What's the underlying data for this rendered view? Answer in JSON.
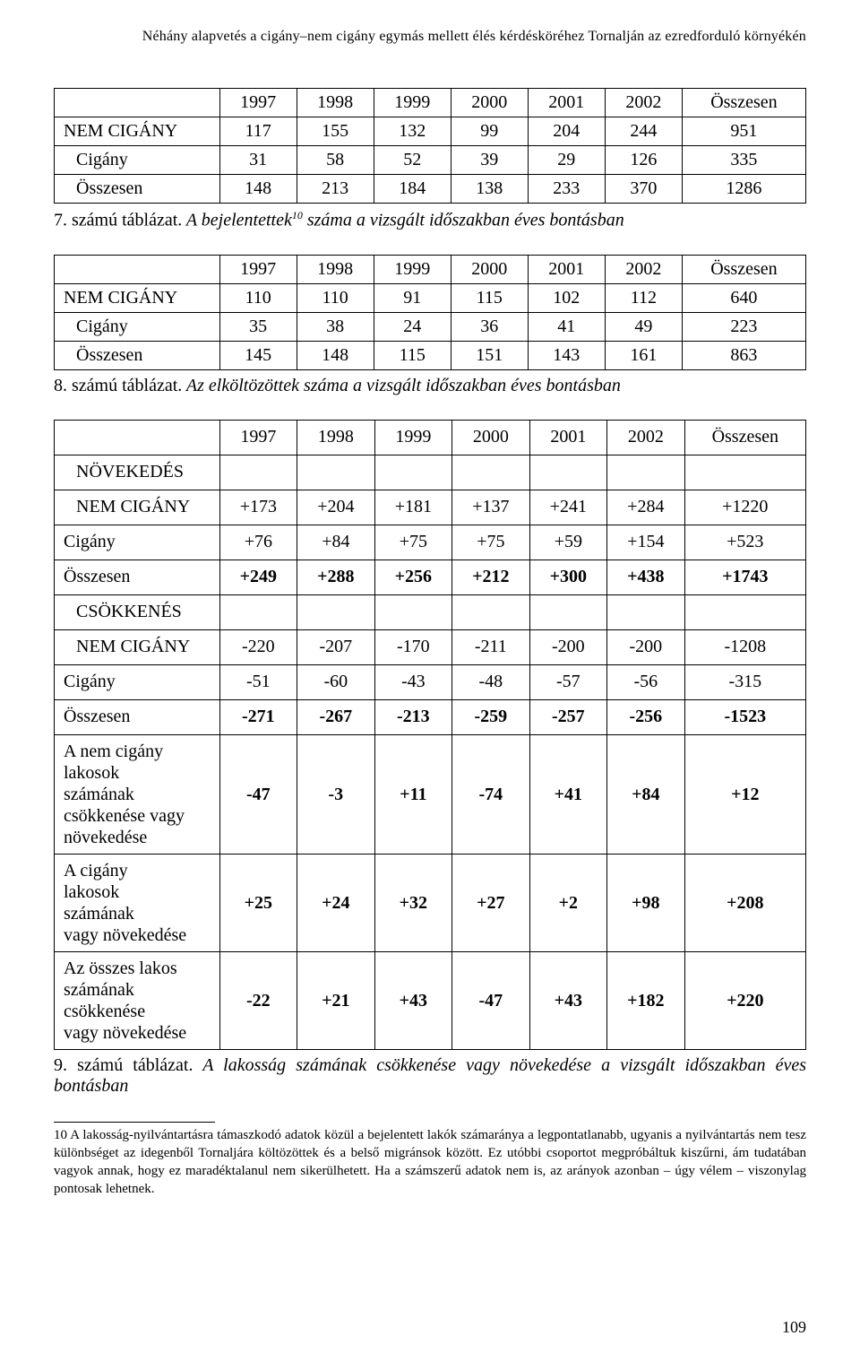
{
  "running_head": "Néhány alapvetés a cigány–nem cigány egymás mellett élés kérdésköréhez Tornalján az ezredforduló környékén",
  "years": [
    "1997",
    "1998",
    "1999",
    "2000",
    "2001",
    "2002",
    "Összesen"
  ],
  "table7": {
    "rows": [
      {
        "label": "NEM CIGÁNY",
        "vals": [
          "117",
          "155",
          "132",
          "99",
          "204",
          "244",
          "951"
        ],
        "indent": false
      },
      {
        "label": "Cigány",
        "vals": [
          "31",
          "58",
          "52",
          "39",
          "29",
          "126",
          "335"
        ],
        "indent": true
      },
      {
        "label": "Összesen",
        "vals": [
          "148",
          "213",
          "184",
          "138",
          "233",
          "370",
          "1286"
        ],
        "indent": true
      }
    ]
  },
  "caption7_a": "7. számú táblázat.",
  "caption7_b": " A bejelentettek",
  "caption7_sup": "10",
  "caption7_c": " száma a vizsgált időszakban éves bontásban",
  "table8": {
    "rows": [
      {
        "label": "NEM CIGÁNY",
        "vals": [
          "110",
          "110",
          "91",
          "115",
          "102",
          "112",
          "640"
        ],
        "indent": false
      },
      {
        "label": "Cigány",
        "vals": [
          "35",
          "38",
          "24",
          "36",
          "41",
          "49",
          "223"
        ],
        "indent": true
      },
      {
        "label": "Összesen",
        "vals": [
          "145",
          "148",
          "115",
          "151",
          "143",
          "161",
          "863"
        ],
        "indent": true
      }
    ]
  },
  "caption8_a": "8. számú táblázat.",
  "caption8_b": " Az elköltözöttek száma a vizsgált időszakban éves bontásban",
  "table9": {
    "section1": "NÖVEKEDÉS",
    "s1rows": [
      {
        "label": "NEM CIGÁNY",
        "vals": [
          "+173",
          "+204",
          "+181",
          "+137",
          "+241",
          "+284",
          "+1220"
        ],
        "indent": false,
        "bold": false
      },
      {
        "label": "Cigány",
        "vals": [
          "+76",
          "+84",
          "+75",
          "+75",
          "+59",
          "+154",
          "+523"
        ],
        "indent": false,
        "bold": false
      },
      {
        "label": "Összesen",
        "vals": [
          "+249",
          "+288",
          "+256",
          "+212",
          "+300",
          "+438",
          "+1743"
        ],
        "indent": false,
        "bold": true
      }
    ],
    "section2": "CSÖKKENÉS",
    "s2rows": [
      {
        "label": "NEM CIGÁNY",
        "vals": [
          "-220",
          "-207",
          "-170",
          "-211",
          "-200",
          "-200",
          "-1208"
        ],
        "indent": false,
        "bold": false
      },
      {
        "label": "Cigány",
        "vals": [
          "-51",
          "-60",
          "-43",
          "-48",
          "-57",
          "-56",
          "-315"
        ],
        "indent": false,
        "bold": false
      },
      {
        "label": "Összesen",
        "vals": [
          "-271",
          "-267",
          "-213",
          "-259",
          "-257",
          "-256",
          "-1523"
        ],
        "indent": false,
        "bold": true
      }
    ],
    "tailrows": [
      {
        "label": "A nem cigány\nlakosok\nszámának\ncsökkenése vagy\nnövekedése",
        "vals": [
          "-47",
          "-3",
          "+11",
          "-74",
          "+41",
          "+84",
          "+12"
        ],
        "bold": true
      },
      {
        "label": "A cigány\nlakosok\nszámának\nvagy növekedése",
        "vals": [
          "+25",
          "+24",
          "+32",
          "+27",
          "+2",
          "+98",
          "+208"
        ],
        "bold": true
      },
      {
        "label": "Az összes lakos\nszámának\ncsökkenése\nvagy növekedése",
        "vals": [
          "-22",
          "+21",
          "+43",
          "-47",
          "+43",
          "+182",
          "+220"
        ],
        "bold": true
      }
    ]
  },
  "caption9_a": "9. számú táblázat.",
  "caption9_b": " A lakosság számának csökkenése vagy növekedése a vizsgált időszakban éves bontásban",
  "footnote": "10 A lakosság-nyilvántartásra támaszkodó adatok közül a bejelentett lakók számaránya a legpontatlanabb, ugyanis a nyilvántartás nem tesz különbséget az idegenből Tornaljára költözöttek és a belső migránsok között. Ez utóbbi csoportot megpróbáltuk kiszűrni, ám tudatában vagyok annak, hogy ez maradéktalanul nem sikerülhetett. Ha a számszerű adatok nem is, az arányok azonban – úgy vélem – viszonylag pontosak lehetnek.",
  "pagenum": "109"
}
